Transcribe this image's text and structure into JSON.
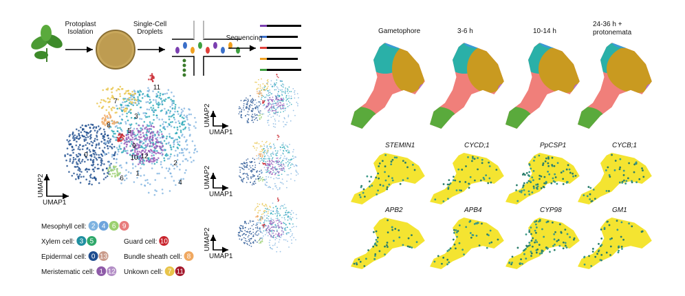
{
  "pipeline": {
    "steps": [
      [
        "Protoplast",
        "Isolation"
      ],
      [
        "Single-Cell",
        "Droplets"
      ],
      [
        "Sequencing"
      ]
    ]
  },
  "umap_main": {
    "x_label": "UMAP1",
    "y_label": "UMAP2",
    "cluster_labels": [
      "2",
      "9",
      "4",
      "7",
      "5",
      "6",
      "8",
      "1",
      "3",
      "0",
      "10",
      "11",
      "12"
    ]
  },
  "umap_small": [
    {
      "x_label": "UMAP1",
      "y_label": "UMAP2"
    },
    {
      "x_label": "UMAP1",
      "y_label": "UMAP2"
    },
    {
      "x_label": "UMAP1",
      "y_label": "UMAP2"
    }
  ],
  "legend": [
    {
      "label": "Mesophyll cell:",
      "clusters": [
        "2",
        "4",
        "6",
        "9"
      ],
      "colors": [
        "#7fb3e0",
        "#6ea4dc",
        "#9bd06f",
        "#e87b7b"
      ]
    },
    {
      "label": "Xylem cell:",
      "clusters": [
        "3",
        "5"
      ],
      "colors": [
        "#1f8fa0",
        "#2ea86a"
      ]
    },
    {
      "label": "Epidermal cell:",
      "clusters": [
        "0",
        "13"
      ],
      "colors": [
        "#1e4d8f",
        "#c99a8a"
      ]
    },
    {
      "label": "Meristematic cell:",
      "clusters": [
        "1",
        "12"
      ],
      "colors": [
        "#8e5aa8",
        "#b38ec6"
      ]
    },
    {
      "label": "Guard cell:",
      "clusters": [
        "10"
      ],
      "colors": [
        "#c8232c"
      ]
    },
    {
      "label": "Bundle sheath cell:",
      "clusters": [
        "8"
      ],
      "colors": [
        "#f0a860"
      ]
    },
    {
      "label": "Unkown cell:",
      "clusters": [
        "7",
        "11"
      ],
      "colors": [
        "#e8c44a",
        "#a3162a"
      ]
    }
  ],
  "conditions": [
    [
      "Gametophore"
    ],
    [
      "3-6 h"
    ],
    [
      "10-14 h"
    ],
    [
      "24-36 h +",
      "protonemata"
    ]
  ],
  "genes": [
    "STEMIN1",
    "CYCD;1",
    "PpCSP1",
    "CYCB;1",
    "APB2",
    "APB4",
    "CYP98",
    "GM1"
  ]
}
